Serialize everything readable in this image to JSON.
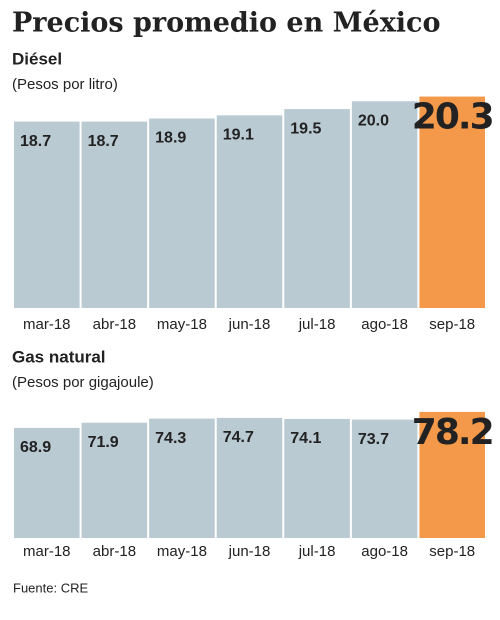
{
  "title": "Precios promedio en México",
  "source": "Fuente: CRE",
  "chart_data": [
    {
      "type": "bar",
      "title": "Diésel",
      "subtitle": "(Pesos por litro)",
      "categories": [
        "mar-18",
        "abr-18",
        "may-18",
        "jun-18",
        "jul-18",
        "ago-18",
        "sep-18"
      ],
      "values": [
        18.7,
        18.7,
        18.9,
        19.1,
        19.5,
        20.0,
        20.3
      ],
      "value_labels": [
        "18.7",
        "18.7",
        "18.9",
        "19.1",
        "19.5",
        "20.0",
        "20.3"
      ],
      "colors": [
        "#b9cad3",
        "#b9cad3",
        "#b9cad3",
        "#b9cad3",
        "#b9cad3",
        "#b9cad3",
        "#f4994a"
      ],
      "ylim": [
        6.8,
        20.4
      ]
    },
    {
      "type": "bar",
      "title": "Gas natural",
      "subtitle": "(Pesos por gigajoule)",
      "categories": [
        "mar-18",
        "abr-18",
        "may-18",
        "jun-18",
        "jul-18",
        "ago-18",
        "sep-18"
      ],
      "values": [
        68.9,
        71.9,
        74.3,
        74.7,
        74.1,
        73.7,
        78.2
      ],
      "value_labels": [
        "68.9",
        "71.9",
        "74.3",
        "74.7",
        "74.1",
        "73.7",
        "78.2"
      ],
      "colors": [
        "#b9cad3",
        "#b9cad3",
        "#b9cad3",
        "#b9cad3",
        "#b9cad3",
        "#b9cad3",
        "#f4994a"
      ],
      "ylim": [
        4.9,
        79.3
      ]
    }
  ]
}
